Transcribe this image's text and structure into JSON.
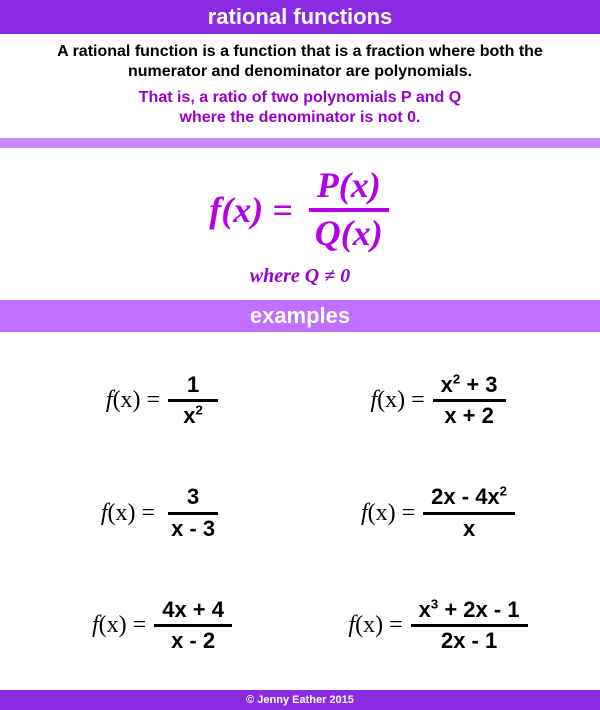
{
  "colors": {
    "header_bg": "#8a2be2",
    "thin_bar_bg": "#c98aff",
    "examples_bar_bg": "#c070ff",
    "formula_color": "#b300e6",
    "intro2_color": "#9900cc",
    "text_color": "#000000",
    "white": "#ffffff"
  },
  "header": {
    "title": "rational functions"
  },
  "intro": {
    "line1": "A rational function is a function that is a fraction where both the numerator and denominator are polynomials.",
    "line2a": "That is, a ratio of two polynomials P and Q",
    "line2b": "where the denominator is not 0."
  },
  "formula": {
    "lhs": "f(x) =",
    "numerator": "P(x)",
    "denominator": "Q(x)",
    "where": "where Q ≠ 0"
  },
  "examples_header": "examples",
  "examples": [
    {
      "num_html": "1",
      "den_html": "x<sup>2</sup>"
    },
    {
      "num_html": "x<sup>2</sup> + 3",
      "den_html": "x + 2"
    },
    {
      "num_html": "3",
      "den_html": "x - 3"
    },
    {
      "num_html": "2x - 4x<sup>2</sup>",
      "den_html": "x"
    },
    {
      "num_html": "4x + 4",
      "den_html": "x - 2"
    },
    {
      "num_html": "x<sup>3</sup> + 2x - 1",
      "den_html": "2x - 1"
    }
  ],
  "example_lhs": {
    "f": "f",
    "paren": "(x) = "
  },
  "footer": "© Jenny Eather 2015"
}
